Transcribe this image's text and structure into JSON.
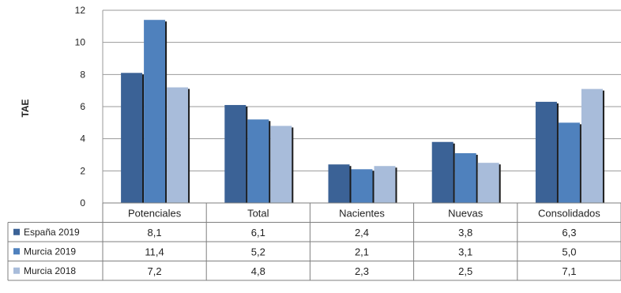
{
  "chart_data": {
    "type": "bar",
    "ylabel": "TAE",
    "xlabel": "",
    "ylim": [
      0,
      12
    ],
    "yticks": [
      "0",
      "2",
      "4",
      "6",
      "8",
      "10",
      "12"
    ],
    "grid": true,
    "legend": "data-table",
    "categories": [
      "Potenciales",
      "Total",
      "Nacientes",
      "Nuevas",
      "Consolidados"
    ],
    "series": [
      {
        "name": "España 2019",
        "color": "#3b6296",
        "values": [
          8.1,
          6.1,
          2.4,
          3.8,
          6.3
        ],
        "labels": [
          "8,1",
          "6,1",
          "2,4",
          "3,8",
          "6,3"
        ]
      },
      {
        "name": "Murcia 2019",
        "color": "#4f81bd",
        "values": [
          11.4,
          5.2,
          2.1,
          3.1,
          5.0
        ],
        "labels": [
          "11,4",
          "5,2",
          "2,1",
          "3,1",
          "5,0"
        ]
      },
      {
        "name": "Murcia 2018",
        "color": "#a8bcda",
        "values": [
          7.2,
          4.8,
          2.3,
          2.5,
          7.1
        ],
        "labels": [
          "7,2",
          "4,8",
          "2,3",
          "2,5",
          "7,1"
        ]
      }
    ]
  }
}
